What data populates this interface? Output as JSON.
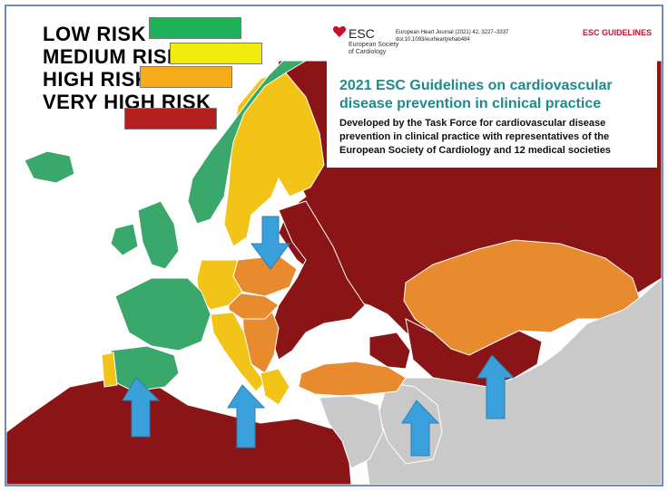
{
  "colors": {
    "low": "#3aa86b",
    "medium": "#f2c417",
    "high": "#e88a2e",
    "very_high": "#8b1416",
    "no_data": "#c9c9c9",
    "sea": "#ffffff",
    "arrow": "#3aa0db",
    "legend_low": "#1fb15a",
    "legend_medium": "#f2ec0c",
    "legend_high": "#f5ac18",
    "legend_very_high": "#b3201f",
    "title_teal": "#1f8a8c",
    "esc_red": "#c8102e"
  },
  "legend": [
    {
      "key": "low",
      "label": "LOW RISK"
    },
    {
      "key": "medium",
      "label": "MEDIUM RISK"
    },
    {
      "key": "high",
      "label": "HIGH RISK"
    },
    {
      "key": "very_high",
      "label": "VERY HIGH RISK"
    }
  ],
  "header": {
    "logo_text": "ESC",
    "society_line1": "European Society",
    "society_line2": "of Cardiology",
    "journal_line1": "European Heart Journal (2021) 42, 3227–3337",
    "journal_line2": "doi:10.1093/eurheartj/ehab484",
    "guidelines_label": "ESC GUIDELINES"
  },
  "info": {
    "title": "2021 ESC Guidelines on cardiovascular disease prevention in clinical practice",
    "subtitle": "Developed by the Task Force for cardiovascular disease prevention in clinical practice with representatives of the European Society of Cardiology and 12 medical societies"
  },
  "arrows": [
    {
      "direction": "down",
      "points_to": "Poland"
    },
    {
      "direction": "up",
      "points_to": "Spain"
    },
    {
      "direction": "up",
      "points_to": "Italy"
    },
    {
      "direction": "up",
      "points_to": "Iran"
    },
    {
      "direction": "up",
      "points_to": "Kyrgyzstan"
    }
  ]
}
